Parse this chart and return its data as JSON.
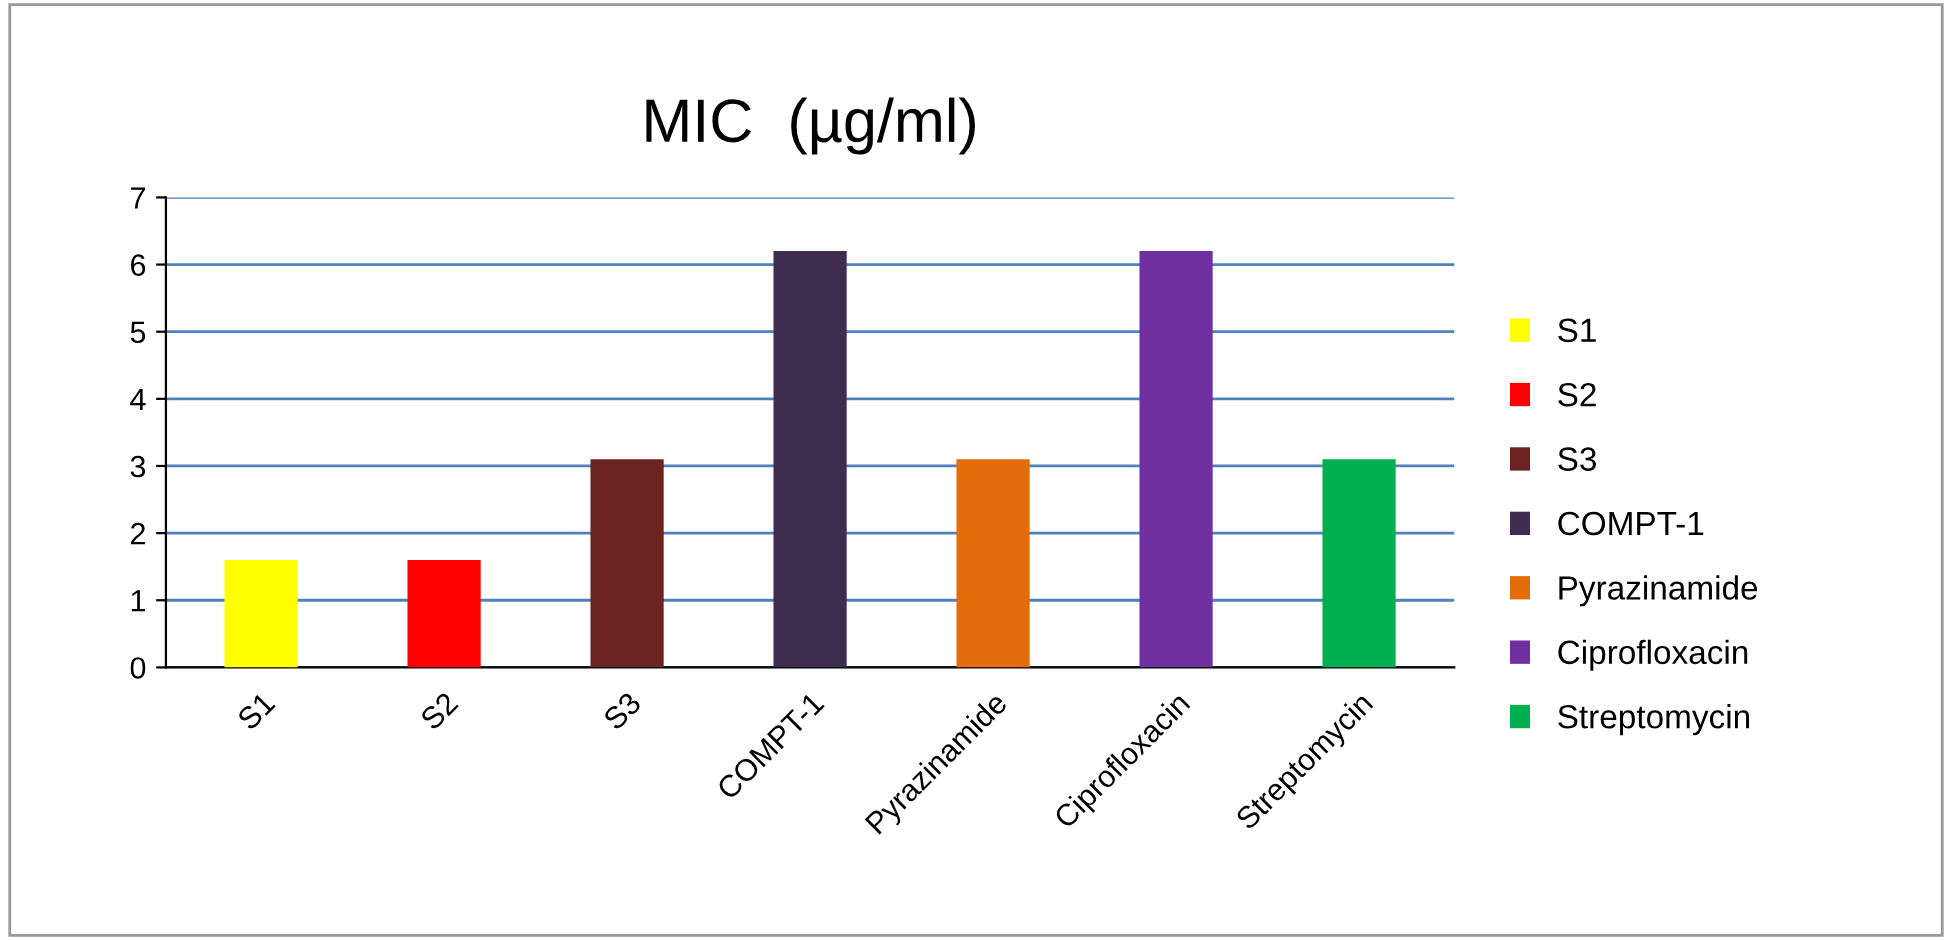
{
  "chart_data": {
    "type": "bar",
    "title": "MIC  (µg/ml)",
    "categories": [
      "S1",
      "S2",
      "S3",
      "COMPT-1",
      "Pyrazinamide",
      "Ciprofloxacin",
      "Streptomycin"
    ],
    "series": [
      {
        "name": "S1",
        "color": "#ffff00",
        "values": [
          1.6,
          null,
          null,
          null,
          null,
          null,
          null
        ]
      },
      {
        "name": "S2",
        "color": "#ff0000",
        "values": [
          null,
          1.6,
          null,
          null,
          null,
          null,
          null
        ]
      },
      {
        "name": "S3",
        "color": "#6b2420",
        "values": [
          null,
          null,
          3.1,
          null,
          null,
          null,
          null
        ]
      },
      {
        "name": "COMPT-1",
        "color": "#3f2d50",
        "values": [
          null,
          null,
          null,
          6.2,
          null,
          null,
          null
        ]
      },
      {
        "name": "Pyrazinamide",
        "color": "#e46c0a",
        "values": [
          null,
          null,
          null,
          null,
          3.1,
          null,
          null
        ]
      },
      {
        "name": "Ciprofloxacin",
        "color": "#7030a0",
        "values": [
          null,
          null,
          null,
          null,
          null,
          6.2,
          null
        ]
      },
      {
        "name": "Streptomycin",
        "color": "#00b050",
        "values": [
          null,
          null,
          null,
          null,
          null,
          null,
          3.1
        ]
      }
    ],
    "ylim": [
      0,
      7
    ],
    "yticks": [
      0,
      1,
      2,
      3,
      4,
      5,
      6,
      7
    ],
    "grid": "y",
    "legend": "right"
  }
}
